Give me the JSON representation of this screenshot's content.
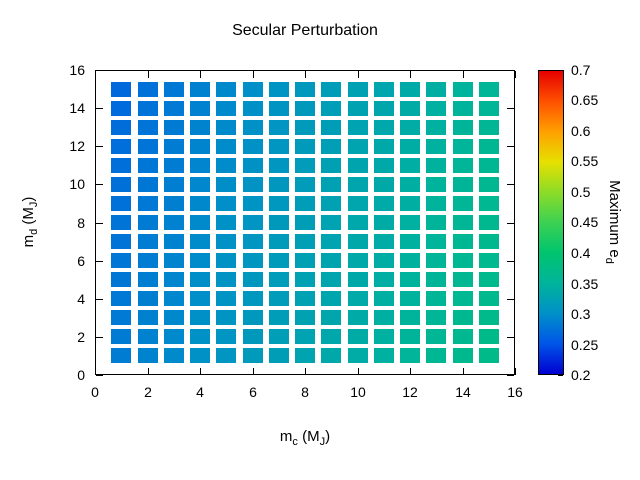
{
  "chart_data": {
    "type": "heatmap",
    "title": "Secular Perturbation",
    "xlabel": "m_c (M_J)",
    "ylabel": "m_d (M_J)",
    "cblabel": "Maximum e_d",
    "x_range": [
      0,
      16
    ],
    "y_range": [
      0,
      16
    ],
    "cb_range": [
      0.2,
      0.7
    ],
    "x_ticks": [
      "0",
      "2",
      "4",
      "6",
      "8",
      "10",
      "12",
      "14",
      "16"
    ],
    "y_ticks": [
      "0",
      "2",
      "4",
      "6",
      "8",
      "10",
      "12",
      "14",
      "16"
    ],
    "cb_ticks": [
      "0.2",
      "0.25",
      "0.3",
      "0.35",
      "0.4",
      "0.45",
      "0.5",
      "0.55",
      "0.6",
      "0.65",
      "0.7"
    ],
    "grid": false,
    "legend": "colorbar-right",
    "palette": [
      {
        "value": 0.2,
        "color": "#0000d2"
      },
      {
        "value": 0.25,
        "color": "#0055e8"
      },
      {
        "value": 0.3,
        "color": "#0090c8"
      },
      {
        "value": 0.35,
        "color": "#00b49b"
      },
      {
        "value": 0.4,
        "color": "#00c46e"
      },
      {
        "value": 0.45,
        "color": "#3cd152"
      },
      {
        "value": 0.5,
        "color": "#8cdc28"
      },
      {
        "value": 0.55,
        "color": "#e6e000"
      },
      {
        "value": 0.6,
        "color": "#ffa000"
      },
      {
        "value": 0.65,
        "color": "#ff5000"
      },
      {
        "value": 0.7,
        "color": "#e60000"
      }
    ],
    "matrix": {
      "x_values": [
        1,
        2,
        3,
        4,
        5,
        6,
        7,
        8,
        9,
        10,
        11,
        12,
        13,
        14,
        15
      ],
      "y_values_top_to_bottom": [
        15,
        14,
        13,
        12,
        11,
        10,
        9,
        8,
        7,
        6,
        5,
        4,
        3,
        2,
        1
      ],
      "rows_top_to_bottom": [
        [
          0.268,
          0.274,
          0.28,
          0.287,
          0.293,
          0.299,
          0.305,
          0.312,
          0.318,
          0.324,
          0.33,
          0.337,
          0.343,
          0.349,
          0.355
        ],
        [
          0.269,
          0.275,
          0.281,
          0.288,
          0.294,
          0.3,
          0.306,
          0.313,
          0.319,
          0.325,
          0.331,
          0.338,
          0.344,
          0.35,
          0.356
        ],
        [
          0.27,
          0.276,
          0.282,
          0.289,
          0.295,
          0.301,
          0.307,
          0.314,
          0.32,
          0.326,
          0.332,
          0.339,
          0.345,
          0.351,
          0.357
        ],
        [
          0.271,
          0.277,
          0.283,
          0.29,
          0.296,
          0.302,
          0.308,
          0.315,
          0.321,
          0.327,
          0.333,
          0.34,
          0.346,
          0.352,
          0.358
        ],
        [
          0.272,
          0.278,
          0.284,
          0.291,
          0.297,
          0.303,
          0.309,
          0.316,
          0.322,
          0.328,
          0.334,
          0.341,
          0.347,
          0.353,
          0.359
        ],
        [
          0.273,
          0.279,
          0.285,
          0.292,
          0.298,
          0.304,
          0.31,
          0.317,
          0.323,
          0.329,
          0.335,
          0.342,
          0.348,
          0.354,
          0.36
        ],
        [
          0.274,
          0.28,
          0.286,
          0.293,
          0.299,
          0.305,
          0.311,
          0.318,
          0.324,
          0.33,
          0.336,
          0.343,
          0.349,
          0.355,
          0.361
        ],
        [
          0.276,
          0.282,
          0.288,
          0.295,
          0.301,
          0.307,
          0.313,
          0.32,
          0.326,
          0.332,
          0.338,
          0.345,
          0.351,
          0.357,
          0.363
        ],
        [
          0.277,
          0.283,
          0.289,
          0.296,
          0.302,
          0.308,
          0.314,
          0.321,
          0.327,
          0.333,
          0.339,
          0.346,
          0.352,
          0.358,
          0.364
        ],
        [
          0.278,
          0.284,
          0.29,
          0.297,
          0.303,
          0.309,
          0.315,
          0.322,
          0.328,
          0.334,
          0.34,
          0.347,
          0.353,
          0.359,
          0.365
        ],
        [
          0.279,
          0.285,
          0.291,
          0.298,
          0.304,
          0.31,
          0.316,
          0.323,
          0.329,
          0.335,
          0.341,
          0.348,
          0.354,
          0.36,
          0.366
        ],
        [
          0.28,
          0.286,
          0.292,
          0.299,
          0.305,
          0.311,
          0.317,
          0.324,
          0.33,
          0.336,
          0.342,
          0.349,
          0.355,
          0.361,
          0.367
        ],
        [
          0.281,
          0.287,
          0.293,
          0.3,
          0.306,
          0.312,
          0.318,
          0.325,
          0.331,
          0.337,
          0.343,
          0.35,
          0.356,
          0.362,
          0.368
        ],
        [
          0.282,
          0.288,
          0.294,
          0.301,
          0.307,
          0.313,
          0.319,
          0.326,
          0.332,
          0.338,
          0.344,
          0.351,
          0.357,
          0.363,
          0.369
        ],
        [
          0.283,
          0.289,
          0.295,
          0.302,
          0.308,
          0.314,
          0.32,
          0.327,
          0.333,
          0.339,
          0.345,
          0.352,
          0.358,
          0.364,
          0.37
        ]
      ]
    }
  },
  "labels": {
    "x": {
      "base": "m",
      "base_sub": "c",
      "rest": " (M",
      "rest_sub": "J",
      "close": ")"
    },
    "y": {
      "base": "m",
      "base_sub": "d",
      "rest": " (M",
      "rest_sub": "J",
      "close": ")"
    },
    "cb": {
      "text": "Maximum e",
      "sub": "d"
    }
  },
  "colors": {
    "background": "#ffffff",
    "text": "#000000",
    "border": "#000000"
  }
}
